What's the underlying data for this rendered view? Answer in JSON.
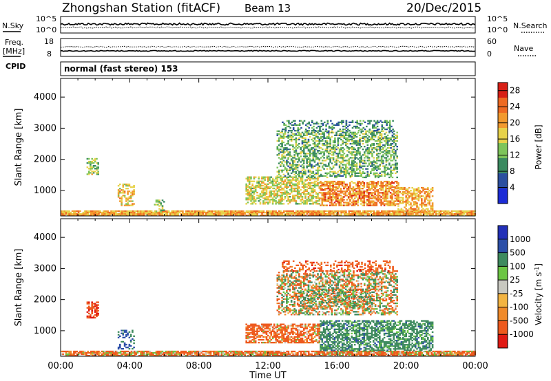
{
  "header": {
    "title": "Zhongshan Station (fitACF)",
    "beam": "Beam 13",
    "date": "20/Dec/2015"
  },
  "top_panels": {
    "sky_label": "N.Sky",
    "search_label": "N.Search",
    "sky_ticks": [
      "10^5",
      "10^0"
    ],
    "search_ticks": [
      "10^5",
      "10^0"
    ],
    "freq_label": "Freq.",
    "freq_unit": "[MHz]",
    "freq_ticks": [
      "18",
      "8"
    ],
    "nave_label": "Nave",
    "nave_ticks": [
      "60",
      "0"
    ],
    "cpid_label": "CPID",
    "cpid_text": "normal (fast stereo) 153"
  },
  "colors": {
    "power": [
      "#1c2bd6",
      "#2b4fa0",
      "#3a8a60",
      "#7dc45a",
      "#e7d24a",
      "#f29a2e",
      "#ee6a22",
      "#d81f16"
    ],
    "velocity": [
      "#e01a14",
      "#ee5a1e",
      "#f08a2a",
      "#f3b442",
      "#c8c8c0",
      "#6cc544",
      "#3e8a5e",
      "#2c4fa8",
      "#2230b8"
    ]
  },
  "chart_data": [
    {
      "type": "heatmap",
      "title": "Power",
      "ylabel": "Slant Range [km]",
      "xlabel": "Time UT",
      "x_ticks": [
        "00:00",
        "04:00",
        "08:00",
        "12:00",
        "16:00",
        "20:00",
        "00:00"
      ],
      "xlim_hours": [
        0,
        24
      ],
      "y_ticks": [
        1000,
        2000,
        3000,
        4000
      ],
      "ylim": [
        180,
        4600
      ],
      "colorbar": {
        "label": "Power [dB]",
        "ticks": [
          4,
          8,
          12,
          16,
          20,
          24,
          28
        ],
        "range": [
          0,
          30
        ]
      },
      "echo_regions": [
        {
          "t": [
            0.0,
            24.0
          ],
          "r": [
            180,
            320
          ],
          "level": 20,
          "density": 0.9
        },
        {
          "t": [
            1.5,
            2.2
          ],
          "r": [
            1500,
            2000
          ],
          "level": 14,
          "density": 0.55
        },
        {
          "t": [
            3.3,
            4.2
          ],
          "r": [
            500,
            1200
          ],
          "level": 18,
          "density": 0.5
        },
        {
          "t": [
            5.4,
            6.0
          ],
          "r": [
            300,
            700
          ],
          "level": 12,
          "density": 0.35
        },
        {
          "t": [
            10.7,
            15.0
          ],
          "r": [
            550,
            1450
          ],
          "level": 16,
          "density": 0.6
        },
        {
          "t": [
            15.0,
            19.5
          ],
          "r": [
            500,
            1300
          ],
          "level": 22,
          "density": 0.65
        },
        {
          "t": [
            19.5,
            21.5
          ],
          "r": [
            300,
            1100
          ],
          "level": 20,
          "density": 0.55
        },
        {
          "t": [
            12.5,
            19.5
          ],
          "r": [
            1400,
            2900
          ],
          "level": 12,
          "density": 0.5
        },
        {
          "t": [
            12.8,
            19.2
          ],
          "r": [
            2900,
            3250
          ],
          "level": 9,
          "density": 0.35
        }
      ]
    },
    {
      "type": "heatmap",
      "title": "Velocity",
      "ylabel": "Slant Range [km]",
      "xlabel": "Time UT",
      "x_ticks": [
        "00:00",
        "04:00",
        "08:00",
        "12:00",
        "16:00",
        "20:00",
        "00:00"
      ],
      "xlim_hours": [
        0,
        24
      ],
      "y_ticks": [
        1000,
        2000,
        3000,
        4000
      ],
      "ylim": [
        180,
        4600
      ],
      "colorbar": {
        "label": "Velocity [m s^-1]",
        "ticks": [
          1000,
          500,
          100,
          25,
          -25,
          -100,
          -500,
          -1000
        ],
        "range": [
          -1000,
          1000
        ]
      },
      "echo_regions": [
        {
          "t": [
            0.0,
            24.0
          ],
          "r": [
            180,
            320
          ],
          "level": -150,
          "density": 0.85
        },
        {
          "t": [
            1.5,
            2.2
          ],
          "r": [
            1400,
            1900
          ],
          "level": -400,
          "density": 0.55
        },
        {
          "t": [
            3.3,
            4.2
          ],
          "r": [
            400,
            1000
          ],
          "level": 600,
          "density": 0.4
        },
        {
          "t": [
            10.7,
            15.0
          ],
          "r": [
            600,
            1200
          ],
          "level": -200,
          "density": 0.65
        },
        {
          "t": [
            15.0,
            21.5
          ],
          "r": [
            350,
            1300
          ],
          "level": 300,
          "density": 0.6
        },
        {
          "t": [
            12.5,
            19.5
          ],
          "r": [
            1500,
            2900
          ],
          "level": 0,
          "density": 0.5
        },
        {
          "t": [
            14.0,
            18.0
          ],
          "r": [
            1700,
            2300
          ],
          "level": 60,
          "density": 0.4
        },
        {
          "t": [
            12.8,
            19.2
          ],
          "r": [
            2900,
            3250
          ],
          "level": -300,
          "density": 0.35
        }
      ]
    }
  ]
}
